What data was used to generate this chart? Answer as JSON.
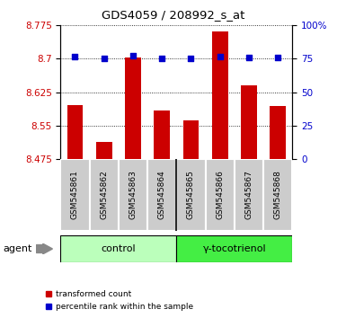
{
  "title": "GDS4059 / 208992_s_at",
  "samples": [
    "GSM545861",
    "GSM545862",
    "GSM545863",
    "GSM545864",
    "GSM545865",
    "GSM545866",
    "GSM545867",
    "GSM545868"
  ],
  "bar_values": [
    8.597,
    8.513,
    8.703,
    8.583,
    8.562,
    8.762,
    8.641,
    8.595
  ],
  "dot_values": [
    8.706,
    8.7,
    8.708,
    8.701,
    8.701,
    8.706,
    8.703,
    8.702
  ],
  "bar_bottom": 8.475,
  "ylim_left": [
    8.475,
    8.775
  ],
  "ylim_right": [
    0,
    100
  ],
  "yticks_left": [
    8.475,
    8.55,
    8.625,
    8.7,
    8.775
  ],
  "ytick_labels_left": [
    "8.475",
    "8.55",
    "8.625",
    "8.7",
    "8.775"
  ],
  "yticks_right": [
    0,
    25,
    50,
    75,
    100
  ],
  "ytick_labels_right": [
    "0",
    "25",
    "50",
    "75",
    "100%"
  ],
  "groups": [
    {
      "label": "control",
      "indices": [
        0,
        1,
        2,
        3
      ],
      "color": "#bbffbb"
    },
    {
      "label": "γ-tocotrienol",
      "indices": [
        4,
        5,
        6,
        7
      ],
      "color": "#44ee44"
    }
  ],
  "agent_label": "agent",
  "bar_color": "#cc0000",
  "dot_color": "#0000cc",
  "background_color": "#ffffff",
  "plot_bg_color": "#ffffff",
  "tick_label_color_left": "#cc0000",
  "tick_label_color_right": "#0000cc",
  "sample_box_color": "#cccccc",
  "legend_items": [
    {
      "label": "transformed count",
      "color": "#cc0000"
    },
    {
      "label": "percentile rank within the sample",
      "color": "#0000cc"
    }
  ]
}
